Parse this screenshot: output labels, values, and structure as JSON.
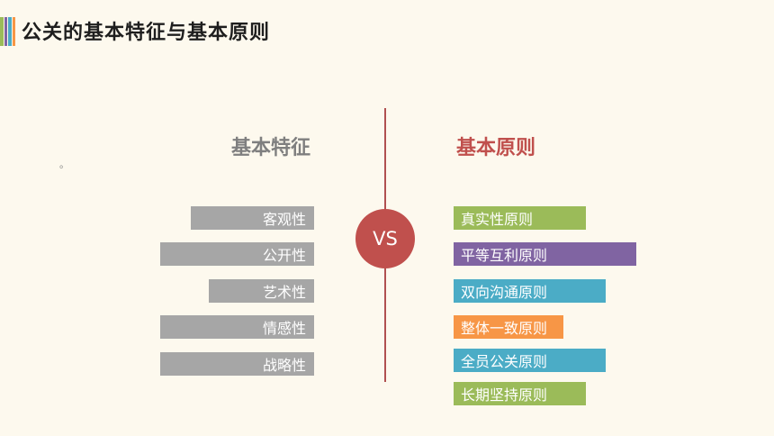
{
  "title": "公关的基本特征与基本原则",
  "accent_colors": [
    "#9bbb59",
    "#8064a2",
    "#4bacc6",
    "#f79646"
  ],
  "vs_label": "VS",
  "stray_mark": "。",
  "left": {
    "heading": "基本特征",
    "bar_color": "#a6a6a6",
    "items": [
      "客观性",
      "公开性",
      "艺术性",
      "情感性",
      "战略性"
    ]
  },
  "right": {
    "heading": "基本原则",
    "heading_color": "#c0504d",
    "items": [
      {
        "label": "真实性原则",
        "color": "#9bbb59"
      },
      {
        "label": "平等互利原则",
        "color": "#8064a2"
      },
      {
        "label": "双向沟通原则",
        "color": "#4bacc6"
      },
      {
        "label": "整体一致原则",
        "color": "#f79646"
      },
      {
        "label": "全员公关原则",
        "color": "#4bacc6"
      },
      {
        "label": "长期坚持原则",
        "color": "#9bbb59"
      }
    ]
  }
}
